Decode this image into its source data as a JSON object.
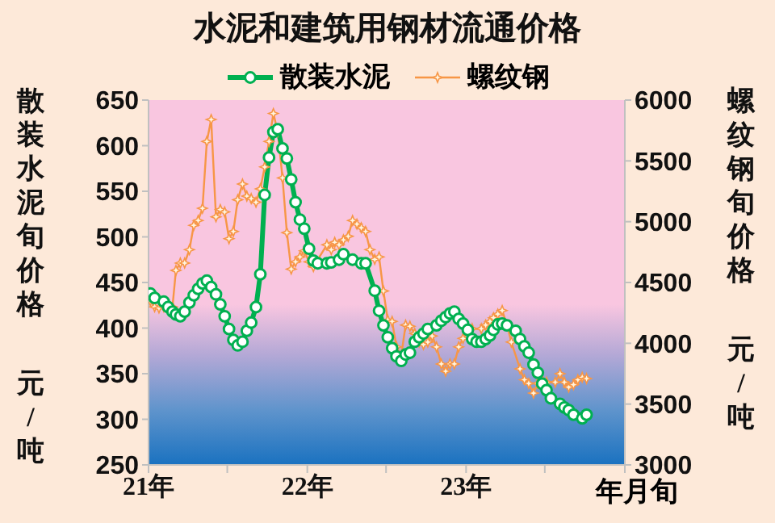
{
  "chart_data": {
    "type": "line",
    "title": "水泥和建筑用钢材流通价格",
    "xlabel": "年月旬",
    "ylabel": "散装水泥旬价格元/吨",
    "y2label": "螺纹钢旬价格元/吨",
    "legend": "top",
    "grid": false,
    "line_style": "solid",
    "xlim": [
      "2021-01-01",
      "2024-01-01"
    ],
    "xticks": [
      {
        "value": "2021-01-01",
        "label": "21年"
      },
      {
        "value": "2021-07-01",
        "label": null
      },
      {
        "value": "2022-01-01",
        "label": "22年"
      },
      {
        "value": "2022-07-01",
        "label": null
      },
      {
        "value": "2023-01-01",
        "label": "23年"
      },
      {
        "value": "2023-07-01",
        "label": null
      },
      {
        "value": "2024-01-01",
        "label": null
      }
    ],
    "ylim": [
      250,
      650
    ],
    "yticks": [
      250,
      300,
      350,
      400,
      450,
      500,
      550,
      600,
      650
    ],
    "y2lim": [
      3000,
      6000
    ],
    "y2ticks": [
      3000,
      3500,
      4000,
      4500,
      5000,
      5500,
      6000
    ],
    "series": [
      {
        "name": "散装水泥",
        "color": "#00b050",
        "marker": "circle",
        "x": [
          "2021-01-05",
          "2021-01-15",
          "2021-02-05",
          "2021-02-15",
          "2021-02-25",
          "2021-03-05",
          "2021-03-15",
          "2021-03-25",
          "2021-04-05",
          "2021-04-15",
          "2021-04-25",
          "2021-05-05",
          "2021-05-15",
          "2021-05-25",
          "2021-06-05",
          "2021-06-15",
          "2021-06-25",
          "2021-07-05",
          "2021-07-15",
          "2021-07-25",
          "2021-08-05",
          "2021-08-15",
          "2021-08-25",
          "2021-09-05",
          "2021-09-15",
          "2021-09-25",
          "2021-10-05",
          "2021-10-15",
          "2021-10-25",
          "2021-11-05",
          "2021-11-15",
          "2021-11-25",
          "2021-12-05",
          "2021-12-15",
          "2021-12-25",
          "2022-01-05",
          "2022-01-15",
          "2022-01-25",
          "2022-02-15",
          "2022-02-25",
          "2022-03-15",
          "2022-03-25",
          "2022-04-15",
          "2022-05-05",
          "2022-05-15",
          "2022-06-05",
          "2022-06-15",
          "2022-06-25",
          "2022-07-05",
          "2022-07-15",
          "2022-07-25",
          "2022-08-05",
          "2022-08-15",
          "2022-08-25",
          "2022-09-05",
          "2022-09-15",
          "2022-09-25",
          "2022-10-05",
          "2022-10-25",
          "2022-11-05",
          "2022-11-15",
          "2022-11-25",
          "2022-12-05",
          "2022-12-15",
          "2022-12-25",
          "2023-01-05",
          "2023-01-15",
          "2023-01-25",
          "2023-02-05",
          "2023-02-15",
          "2023-02-25",
          "2023-03-05",
          "2023-03-15",
          "2023-03-25",
          "2023-04-05",
          "2023-04-25",
          "2023-05-05",
          "2023-05-15",
          "2023-05-25",
          "2023-06-05",
          "2023-06-15",
          "2023-06-25",
          "2023-07-05",
          "2023-07-15",
          "2023-08-05",
          "2023-08-15",
          "2023-08-25",
          "2023-09-05",
          "2023-09-25",
          "2023-10-05"
        ],
        "values": [
          438,
          433,
          429,
          423,
          418,
          415,
          413,
          418,
          428,
          436,
          443,
          449,
          452,
          445,
          437,
          426,
          413,
          399,
          387,
          381,
          385,
          397,
          406,
          423,
          459,
          546,
          587,
          615,
          618,
          597,
          586,
          563,
          538,
          519,
          509,
          487,
          474,
          471,
          471,
          472,
          475,
          481,
          475,
          471,
          471,
          441,
          419,
          403,
          390,
          378,
          369,
          364,
          371,
          373,
          385,
          390,
          394,
          399,
          403,
          408,
          412,
          416,
          418,
          410,
          405,
          398,
          388,
          385,
          385,
          388,
          392,
          398,
          404,
          405,
          403,
          397,
          388,
          380,
          373,
          360,
          351,
          339,
          332,
          323,
          317,
          313,
          310,
          305,
          301,
          305
        ]
      },
      {
        "name": "螺纹钢",
        "color": "#f79646",
        "marker": "star",
        "axis": "y2",
        "x": [
          "2021-01-05",
          "2021-01-15",
          "2021-01-25",
          "2021-02-05",
          "2021-02-15",
          "2021-02-25",
          "2021-03-05",
          "2021-03-15",
          "2021-03-25",
          "2021-04-05",
          "2021-04-15",
          "2021-04-25",
          "2021-05-05",
          "2021-05-15",
          "2021-05-25",
          "2021-06-05",
          "2021-06-15",
          "2021-06-25",
          "2021-07-05",
          "2021-07-15",
          "2021-07-25",
          "2021-08-05",
          "2021-08-15",
          "2021-08-25",
          "2021-09-05",
          "2021-09-15",
          "2021-09-25",
          "2021-10-05",
          "2021-10-15",
          "2021-10-25",
          "2021-11-05",
          "2021-11-15",
          "2021-11-25",
          "2021-12-05",
          "2021-12-15",
          "2021-12-25",
          "2022-01-05",
          "2022-01-15",
          "2022-02-15",
          "2022-02-25",
          "2022-03-05",
          "2022-03-15",
          "2022-03-25",
          "2022-04-05",
          "2022-04-15",
          "2022-04-25",
          "2022-05-05",
          "2022-05-15",
          "2022-05-25",
          "2022-06-05",
          "2022-06-15",
          "2022-06-25",
          "2022-07-05",
          "2022-07-15",
          "2022-07-25",
          "2022-08-05",
          "2022-08-15",
          "2022-08-25",
          "2022-09-05",
          "2022-09-15",
          "2022-09-25",
          "2022-10-05",
          "2022-10-15",
          "2022-10-25",
          "2022-11-05",
          "2022-11-15",
          "2022-11-25",
          "2022-12-05",
          "2022-12-15",
          "2022-12-25",
          "2023-01-05",
          "2023-01-15",
          "2023-02-05",
          "2023-02-15",
          "2023-02-25",
          "2023-03-05",
          "2023-03-15",
          "2023-03-25",
          "2023-04-05",
          "2023-04-15",
          "2023-05-05",
          "2023-05-15",
          "2023-05-25",
          "2023-06-05",
          "2023-06-15",
          "2023-06-25",
          "2023-07-05",
          "2023-07-25",
          "2023-08-05",
          "2023-08-15",
          "2023-08-25",
          "2023-09-05",
          "2023-09-15",
          "2023-09-25",
          "2023-10-05"
        ],
        "values": [
          4350,
          4300,
          4290,
          4300,
          4320,
          4300,
          4600,
          4660,
          4660,
          4770,
          4970,
          5010,
          5110,
          5660,
          5840,
          5040,
          5100,
          5080,
          4860,
          4920,
          5180,
          5310,
          5210,
          5190,
          5160,
          5270,
          5450,
          5660,
          5890,
          5740,
          5360,
          4910,
          4610,
          4670,
          4710,
          4760,
          4670,
          4630,
          4810,
          4770,
          4830,
          4810,
          4850,
          4880,
          5010,
          4980,
          4950,
          4920,
          4770,
          4690,
          4710,
          4430,
          4190,
          4180,
          3970,
          3900,
          4150,
          4140,
          4080,
          4010,
          3990,
          4010,
          4060,
          3970,
          3830,
          3770,
          3830,
          3830,
          3970,
          4040,
          4100,
          4120,
          4120,
          4150,
          4180,
          4210,
          4240,
          4270,
          4150,
          4010,
          3790,
          3700,
          3670,
          3590,
          3670,
          3700,
          3680,
          3680,
          3750,
          3680,
          3640,
          3660,
          3700,
          3720,
          3710
        ]
      }
    ]
  }
}
